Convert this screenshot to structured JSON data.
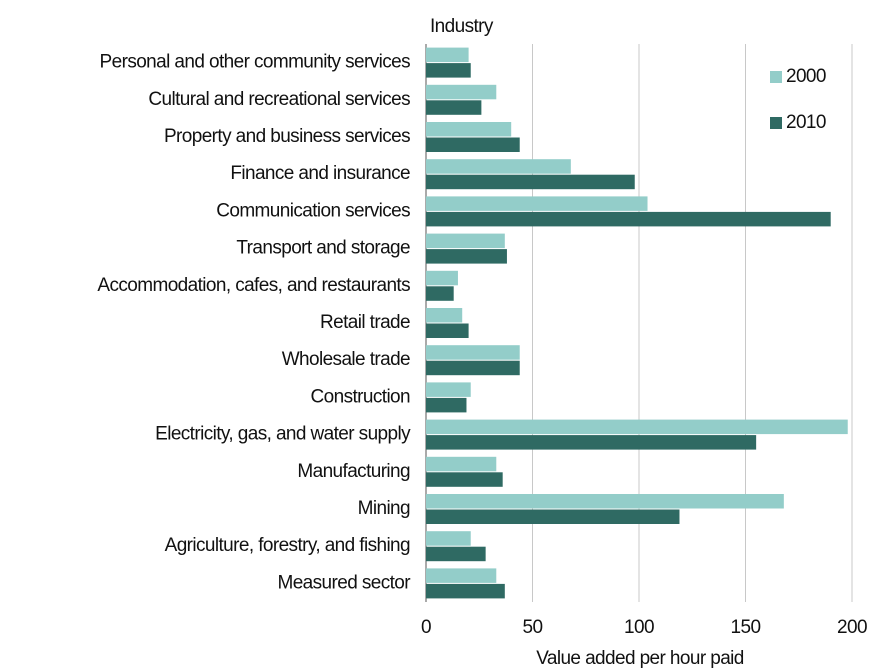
{
  "chart_data": {
    "type": "bar",
    "orientation": "horizontal",
    "y_label": "Industry",
    "x_label": "Value added per hour paid",
    "categories": [
      "Personal and other community services",
      "Cultural and recreational services",
      "Property and business services",
      "Finance and insurance",
      "Communication services",
      "Transport and storage",
      "Accommodation, cafes, and restaurants",
      "Retail trade",
      "Wholesale trade",
      "Construction",
      "Electricity, gas, and water supply",
      "Manufacturing",
      "Mining",
      "Agriculture, forestry, and fishing",
      "Measured sector"
    ],
    "series": [
      {
        "name": "2000",
        "color": "#93cdc9",
        "values": [
          20,
          33,
          40,
          68,
          104,
          37,
          15,
          17,
          44,
          21,
          198,
          33,
          168,
          21,
          33
        ]
      },
      {
        "name": "2010",
        "color": "#2f6a63",
        "values": [
          21,
          26,
          44,
          98,
          190,
          38,
          13,
          20,
          44,
          19,
          155,
          36,
          119,
          28,
          37
        ]
      }
    ],
    "xlim": [
      0,
      200
    ],
    "xticks": [
      0,
      50,
      100,
      150,
      200
    ],
    "grid": true,
    "legend": "top-right"
  }
}
